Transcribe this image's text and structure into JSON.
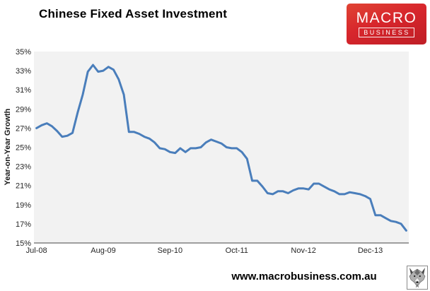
{
  "header": {
    "title": "Chinese Fixed Asset Investment"
  },
  "logo": {
    "line1": "MACRO",
    "line2": "BUSINESS",
    "bg_color": "#d7262c",
    "text_color": "#ffffff"
  },
  "footer": {
    "url": "www.macrobusiness.com.au",
    "logo_icon": "wolf-head"
  },
  "chart_data": {
    "type": "line",
    "title": "Chinese Fixed Asset Investment",
    "xlabel": "",
    "ylabel": "Year-on-Year Growth",
    "ylim": [
      15,
      35
    ],
    "y_tick_step": 2,
    "y_tick_labels": [
      "15%",
      "17%",
      "19%",
      "21%",
      "23%",
      "25%",
      "27%",
      "29%",
      "31%",
      "33%",
      "35%"
    ],
    "x_tick_labels": [
      "Jul-08",
      "Aug-09",
      "Sep-10",
      "Oct-11",
      "Nov-12",
      "Dec-13"
    ],
    "x_tick_indices": [
      0,
      13,
      26,
      39,
      52,
      65
    ],
    "grid": false,
    "legend_position": "none",
    "line_color": "#4a7ebb",
    "plot_bg": "#f2f2f2",
    "axis_color": "#808080",
    "tick_label_color": "#262626",
    "x": [
      "Jul-08",
      "Aug-08",
      "Sep-08",
      "Oct-08",
      "Nov-08",
      "Dec-08",
      "Jan-09",
      "Feb-09",
      "Mar-09",
      "Apr-09",
      "May-09",
      "Jun-09",
      "Jul-09",
      "Aug-09",
      "Sep-09",
      "Oct-09",
      "Nov-09",
      "Dec-09",
      "Jan-10",
      "Feb-10",
      "Mar-10",
      "Apr-10",
      "May-10",
      "Jun-10",
      "Jul-10",
      "Aug-10",
      "Sep-10",
      "Oct-10",
      "Nov-10",
      "Dec-10",
      "Jan-11",
      "Feb-11",
      "Mar-11",
      "Apr-11",
      "May-11",
      "Jun-11",
      "Jul-11",
      "Aug-11",
      "Sep-11",
      "Oct-11",
      "Nov-11",
      "Dec-11",
      "Jan-12",
      "Feb-12",
      "Mar-12",
      "Apr-12",
      "May-12",
      "Jun-12",
      "Jul-12",
      "Aug-12",
      "Sep-12",
      "Oct-12",
      "Nov-12",
      "Dec-12",
      "Jan-13",
      "Feb-13",
      "Mar-13",
      "Apr-13",
      "May-13",
      "Jun-13",
      "Jul-13",
      "Aug-13",
      "Sep-13",
      "Oct-13",
      "Nov-13",
      "Dec-13",
      "Jan-14",
      "Feb-14",
      "Mar-14",
      "Apr-14",
      "May-14",
      "Jun-14",
      "Jul-14"
    ],
    "values": [
      27.0,
      27.3,
      27.5,
      27.2,
      26.7,
      26.1,
      26.2,
      26.5,
      28.6,
      30.5,
      32.9,
      33.6,
      32.9,
      33.0,
      33.4,
      33.1,
      32.1,
      30.5,
      26.6,
      26.6,
      26.4,
      26.1,
      25.9,
      25.5,
      24.9,
      24.8,
      24.5,
      24.4,
      24.9,
      24.5,
      24.9,
      24.9,
      25.0,
      25.5,
      25.8,
      25.6,
      25.4,
      25.0,
      24.9,
      24.9,
      24.5,
      23.8,
      21.5,
      21.5,
      20.9,
      20.2,
      20.1,
      20.4,
      20.4,
      20.2,
      20.5,
      20.7,
      20.7,
      20.6,
      21.2,
      21.2,
      20.9,
      20.6,
      20.4,
      20.1,
      20.1,
      20.3,
      20.2,
      20.1,
      19.9,
      19.6,
      17.9,
      17.9,
      17.6,
      17.3,
      17.2,
      17.0,
      16.3
    ]
  }
}
